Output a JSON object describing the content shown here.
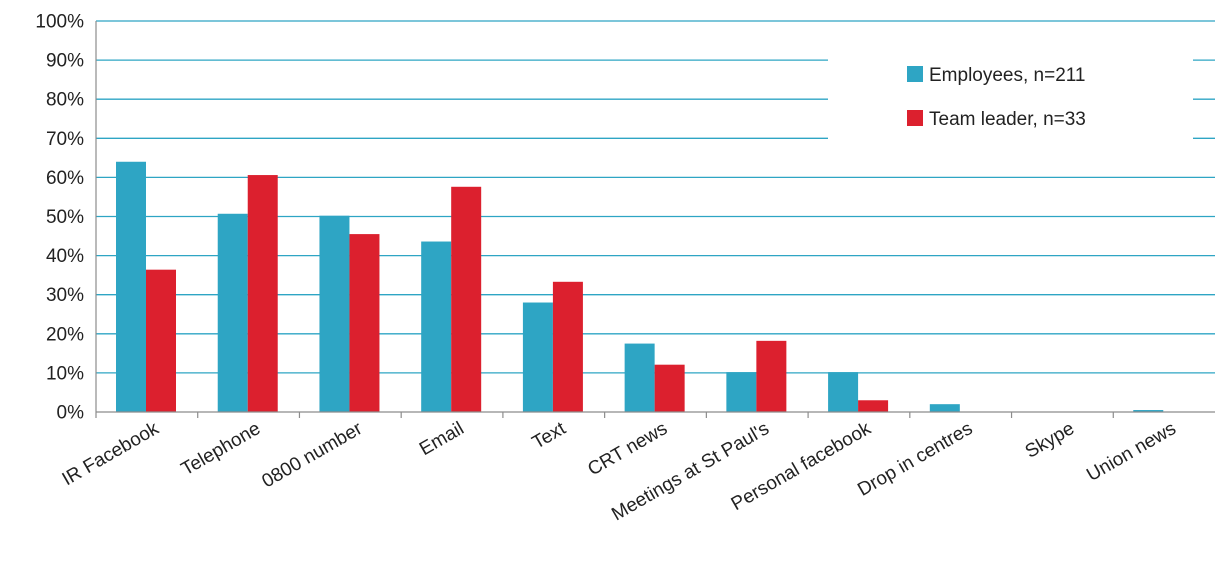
{
  "chart_data": {
    "type": "bar",
    "title": "",
    "xlabel": "",
    "ylabel": "",
    "ylim": [
      0,
      100
    ],
    "yticks": [
      "0%",
      "10%",
      "20%",
      "30%",
      "40%",
      "50%",
      "60%",
      "70%",
      "80%",
      "90%",
      "100%"
    ],
    "grid": true,
    "legend_position": "top-right",
    "categories": [
      "IR Facebook",
      "Telephone",
      "0800 number",
      "Email",
      "Text",
      "CRT news",
      "Meetings at St Paul's",
      "Personal facebook",
      "Drop in centres",
      "Skype",
      "Union news"
    ],
    "series": [
      {
        "name": "Employees, n=211",
        "color": "#2ea5c4",
        "values": [
          64,
          50.7,
          50.2,
          43.6,
          28,
          17.5,
          10.2,
          10.2,
          2,
          0,
          0.5
        ]
      },
      {
        "name": "Team leader, n=33",
        "color": "#dc202e",
        "values": [
          36.4,
          60.6,
          45.5,
          57.6,
          33.3,
          12.1,
          18.2,
          3,
          0,
          0,
          0
        ]
      }
    ]
  }
}
